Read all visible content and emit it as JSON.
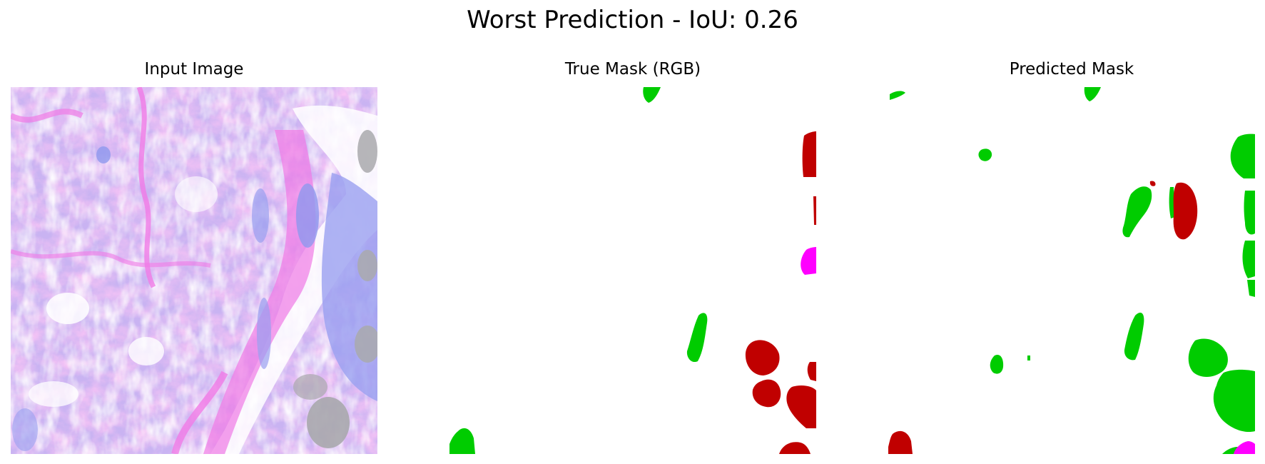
{
  "figure": {
    "suptitle": "Worst Prediction - IoU: 0.26"
  },
  "panels": [
    {
      "title": "Input Image"
    },
    {
      "title": "True Mask (RGB)"
    },
    {
      "title": "Predicted Mask"
    }
  ],
  "mask_colors": {
    "class_green": "#00cc00",
    "class_red": "#c00000",
    "class_magenta": "#ff00ff",
    "background": "#ffffff"
  },
  "tissue_colors": {
    "pink": "#f07ae6",
    "lavender": "#b7a8f2",
    "blue": "#9aa0f0",
    "white": "#ffffff",
    "grey": "#a9a9ad"
  }
}
